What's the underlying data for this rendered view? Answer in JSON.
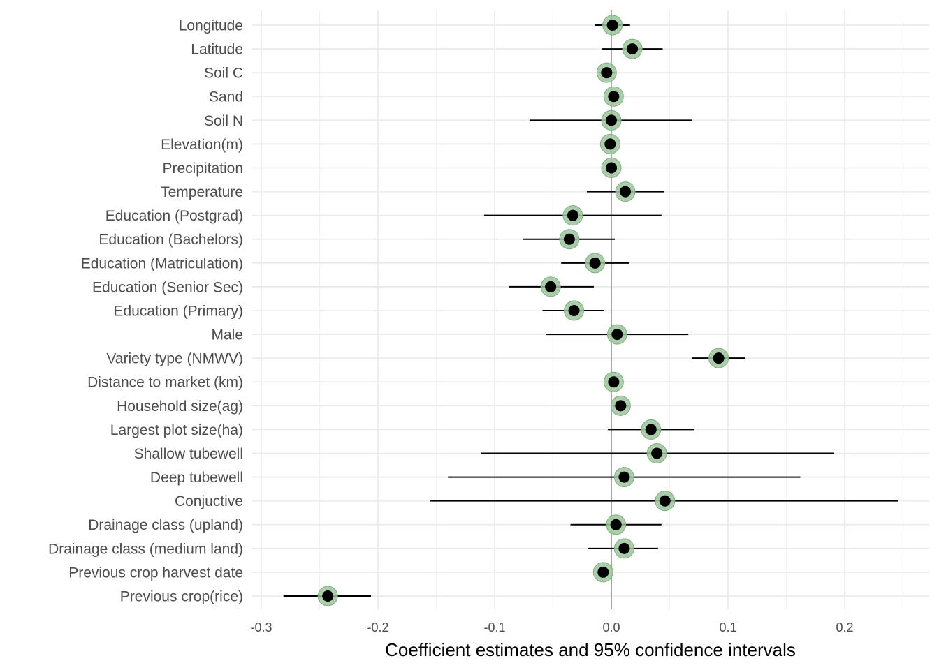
{
  "chart_data": {
    "type": "scatter",
    "style": "coefficient-plot",
    "xlabel": "Coefficient estimates and 95% confidence intervals",
    "xlim": [
      -0.305,
      0.275
    ],
    "xticks": [
      -0.3,
      -0.2,
      -0.1,
      0.0,
      0.1,
      0.2
    ],
    "xtick_labels": [
      "-0.3",
      "-0.2",
      "-0.1",
      "0.0",
      "0.1",
      "0.2"
    ],
    "grid": true,
    "reference_line": 0.0,
    "colors": {
      "reference_line": "#E6A800",
      "halo": "#9DC49D",
      "point": "#000000",
      "grid": "#EBEBEB"
    },
    "terms": [
      {
        "label": "Longitude",
        "estimate": 0.001,
        "lower": -0.014,
        "upper": 0.016
      },
      {
        "label": "Latitude",
        "estimate": 0.018,
        "lower": -0.008,
        "upper": 0.044
      },
      {
        "label": "Soil C",
        "estimate": -0.004,
        "lower": -0.01,
        "upper": 0.003
      },
      {
        "label": "Sand",
        "estimate": 0.002,
        "lower": -0.002,
        "upper": 0.006
      },
      {
        "label": "Soil N",
        "estimate": 0.0,
        "lower": -0.07,
        "upper": 0.069
      },
      {
        "label": "Elevation(m)",
        "estimate": -0.001,
        "lower": -0.003,
        "upper": 0.002
      },
      {
        "label": "Precipitation",
        "estimate": 0.0,
        "lower": -0.002,
        "upper": 0.002
      },
      {
        "label": "Temperature",
        "estimate": 0.012,
        "lower": -0.021,
        "upper": 0.045
      },
      {
        "label": "Education (Postgrad)",
        "estimate": -0.033,
        "lower": -0.109,
        "upper": 0.043
      },
      {
        "label": "Education (Bachelors)",
        "estimate": -0.036,
        "lower": -0.076,
        "upper": 0.003
      },
      {
        "label": "Education (Matriculation)",
        "estimate": -0.014,
        "lower": -0.043,
        "upper": 0.015
      },
      {
        "label": "Education (Senior Sec)",
        "estimate": -0.052,
        "lower": -0.088,
        "upper": -0.015
      },
      {
        "label": "Education (Primary)",
        "estimate": -0.032,
        "lower": -0.059,
        "upper": -0.006
      },
      {
        "label": "Male",
        "estimate": 0.005,
        "lower": -0.056,
        "upper": 0.066
      },
      {
        "label": "Variety type (NMWV)",
        "estimate": 0.092,
        "lower": 0.069,
        "upper": 0.115
      },
      {
        "label": "Distance to market (km)",
        "estimate": 0.002,
        "lower": -0.001,
        "upper": 0.004
      },
      {
        "label": "Household size(ag)",
        "estimate": 0.008,
        "lower": 0.001,
        "upper": 0.015
      },
      {
        "label": "Largest plot size(ha)",
        "estimate": 0.034,
        "lower": -0.003,
        "upper": 0.071
      },
      {
        "label": "Shallow tubewell",
        "estimate": 0.039,
        "lower": -0.112,
        "upper": 0.191
      },
      {
        "label": "Deep tubewell",
        "estimate": 0.011,
        "lower": -0.14,
        "upper": 0.162
      },
      {
        "label": "Conjuctive",
        "estimate": 0.046,
        "lower": -0.155,
        "upper": 0.246
      },
      {
        "label": "Drainage class (upland)",
        "estimate": 0.004,
        "lower": -0.035,
        "upper": 0.043
      },
      {
        "label": "Drainage class (medium land)",
        "estimate": 0.011,
        "lower": -0.02,
        "upper": 0.04
      },
      {
        "label": "Previous crop harvest date",
        "estimate": -0.007,
        "lower": -0.009,
        "upper": -0.005
      },
      {
        "label": "Previous crop(rice)",
        "estimate": -0.243,
        "lower": -0.281,
        "upper": -0.206
      }
    ]
  }
}
